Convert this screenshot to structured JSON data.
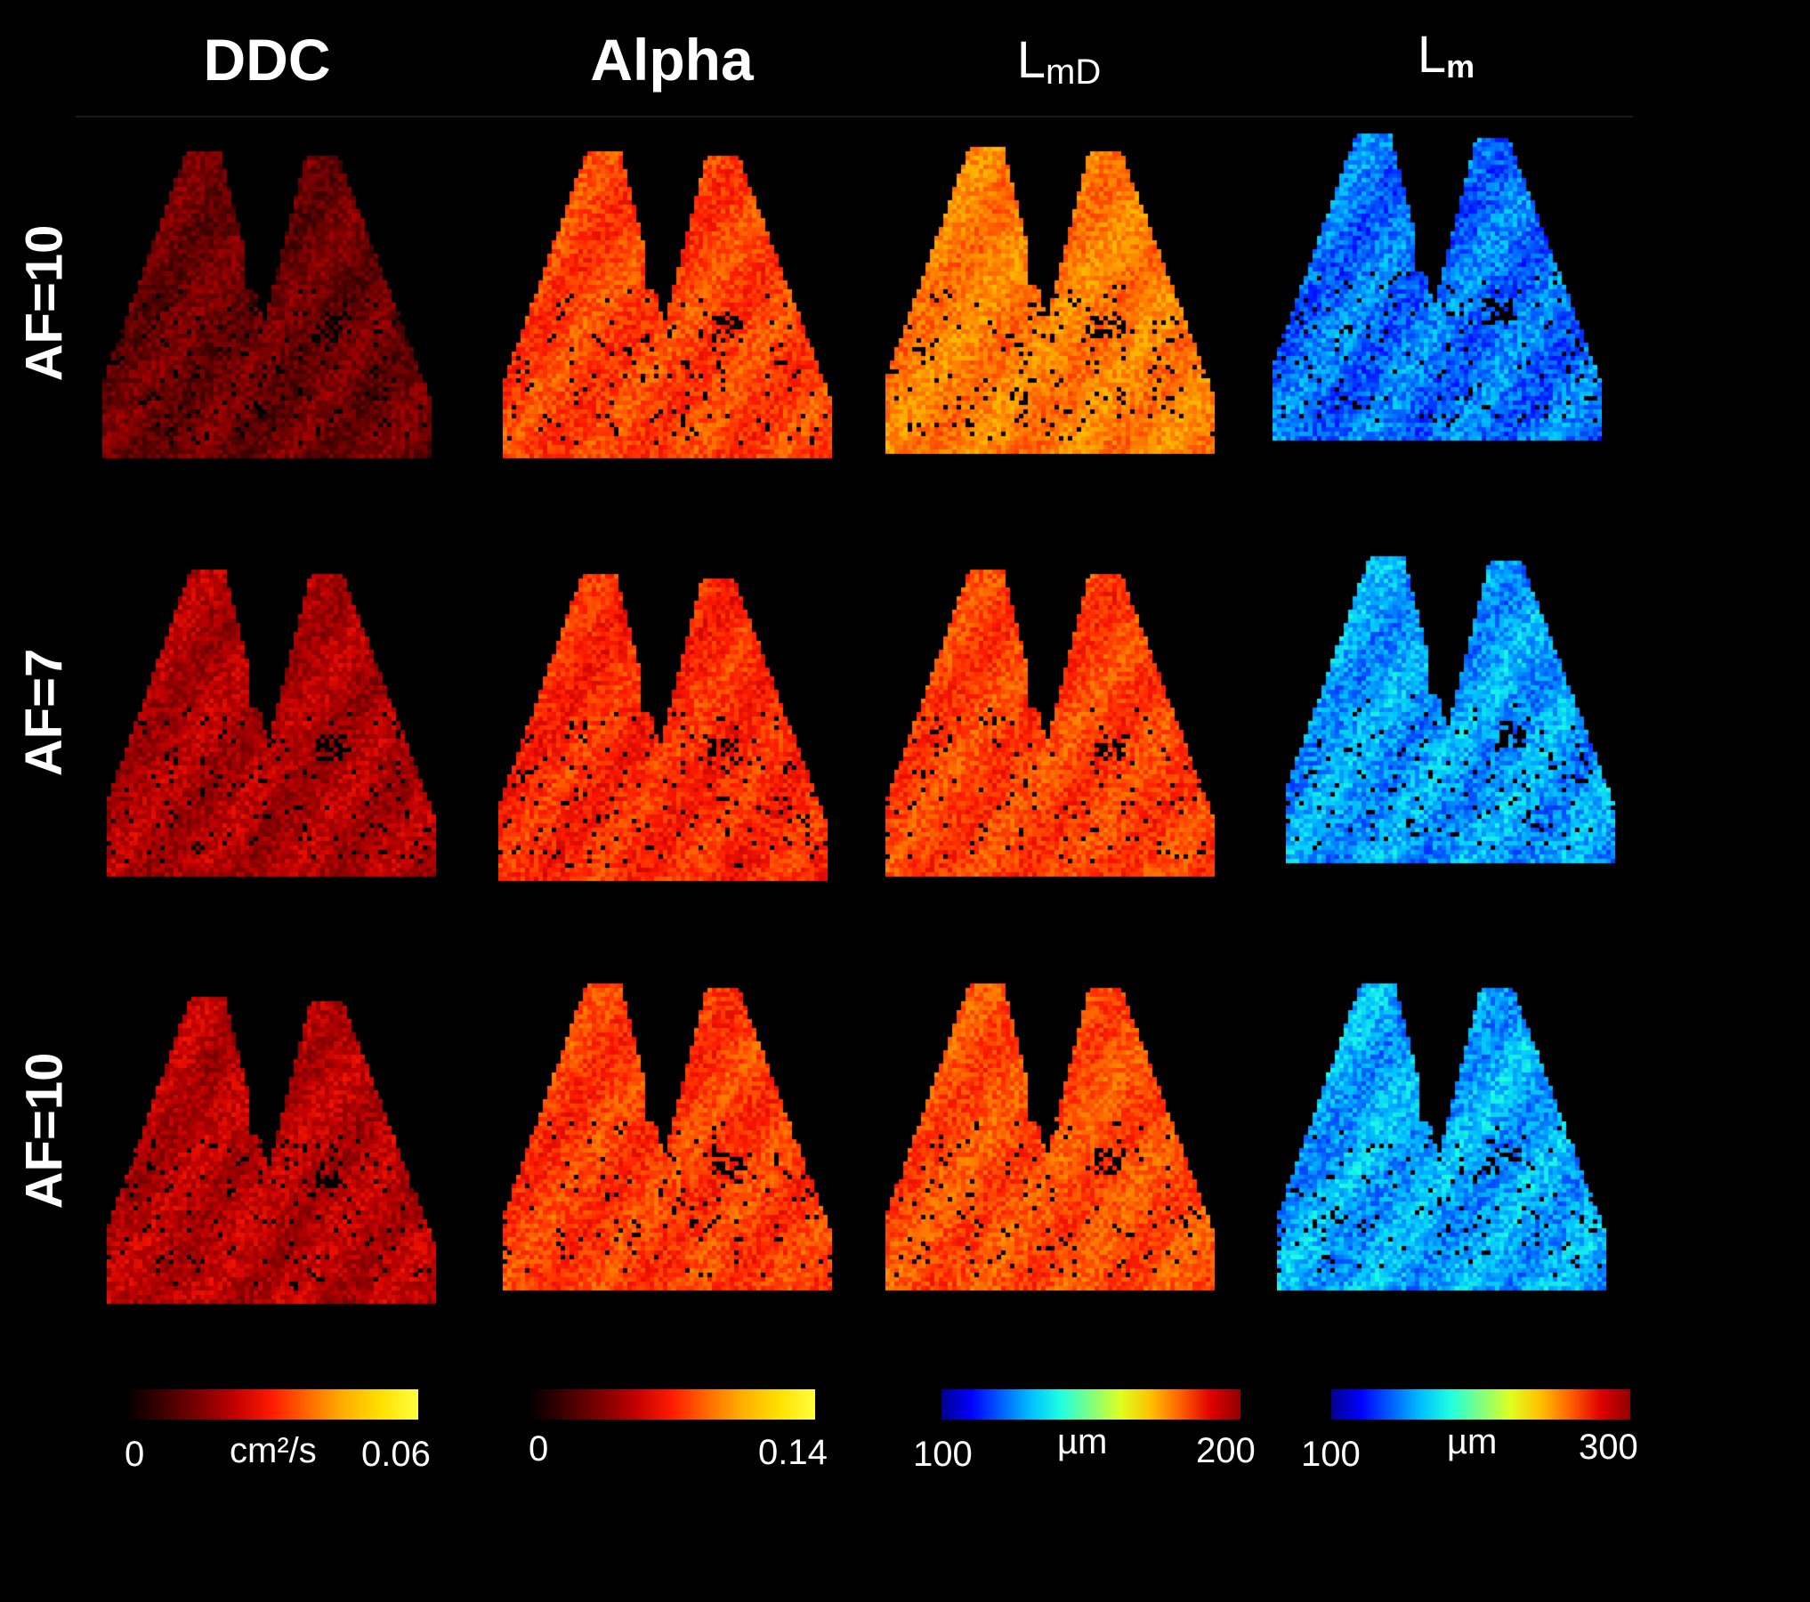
{
  "columns": [
    {
      "label": "DDC"
    },
    {
      "label": "Alpha"
    },
    {
      "label_main": "L",
      "label_sub": "mD"
    },
    {
      "label_main": "L",
      "label_sub": "m"
    }
  ],
  "rows": [
    {
      "label": "AF=10"
    },
    {
      "label": "AF=7"
    },
    {
      "label": "AF=10"
    }
  ],
  "colormaps": {
    "hot": [
      "#000000",
      "#3a0000",
      "#7a0000",
      "#c00000",
      "#ff1a00",
      "#ff6a00",
      "#ffb000",
      "#ffe000",
      "#ffff40"
    ],
    "jet": [
      "#00008f",
      "#0000ff",
      "#0060ff",
      "#00c0ff",
      "#20ffe0",
      "#80ff80",
      "#e0ff20",
      "#ffc000",
      "#ff6000",
      "#e00000",
      "#8f0000"
    ]
  },
  "colorbars": [
    {
      "min": "0",
      "unit": "cm²/s",
      "max": "0.06",
      "cmap": "hot"
    },
    {
      "min": "0",
      "unit": "",
      "max": "0.14",
      "cmap": "hot"
    },
    {
      "min": "100",
      "unit": "µm",
      "max": "200",
      "cmap": "jet"
    },
    {
      "min": "100",
      "unit": "µm",
      "max": "300",
      "cmap": "jet"
    }
  ],
  "map_tints": [
    [
      0.22,
      0.56,
      0.66,
      0.22
    ],
    [
      0.34,
      0.52,
      0.56,
      0.27
    ],
    [
      0.36,
      0.55,
      0.58,
      0.28
    ]
  ]
}
